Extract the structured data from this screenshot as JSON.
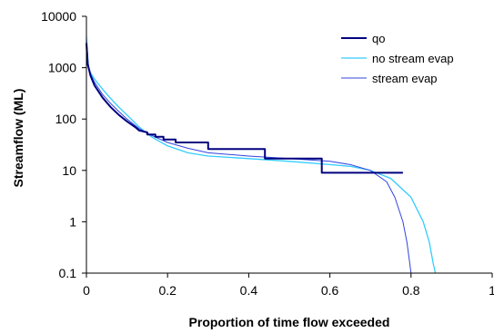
{
  "chart_data": {
    "type": "line",
    "xlabel": "Proportion of time flow exceeded",
    "ylabel": "Streamflow (ML)",
    "xlim": [
      0,
      1
    ],
    "ylim": [
      0.1,
      10000
    ],
    "yscale": "log",
    "grid": false,
    "legend_position": "top-right",
    "x_ticks": [
      "0",
      "0.2",
      "0.4",
      "0.6",
      "0.8",
      "1"
    ],
    "y_ticks": [
      "0.1",
      "1",
      "10",
      "100",
      "1000",
      "10000"
    ],
    "series": [
      {
        "name": "qo",
        "color": "#000080",
        "points": [
          [
            0.0,
            3000
          ],
          [
            0.003,
            1200
          ],
          [
            0.01,
            700
          ],
          [
            0.02,
            450
          ],
          [
            0.04,
            260
          ],
          [
            0.06,
            170
          ],
          [
            0.08,
            120
          ],
          [
            0.1,
            90
          ],
          [
            0.12,
            70
          ],
          [
            0.13,
            60
          ],
          [
            0.15,
            55
          ],
          [
            0.15,
            50
          ],
          [
            0.17,
            50
          ],
          [
            0.17,
            45
          ],
          [
            0.19,
            45
          ],
          [
            0.19,
            40
          ],
          [
            0.22,
            40
          ],
          [
            0.22,
            35
          ],
          [
            0.3,
            35
          ],
          [
            0.3,
            26
          ],
          [
            0.44,
            26
          ],
          [
            0.44,
            17
          ],
          [
            0.58,
            17
          ],
          [
            0.58,
            9
          ],
          [
            0.78,
            9
          ]
        ]
      },
      {
        "name": "no stream evap",
        "color": "#33CCFF",
        "points": [
          [
            0.0,
            4000
          ],
          [
            0.005,
            1000
          ],
          [
            0.01,
            800
          ],
          [
            0.02,
            600
          ],
          [
            0.04,
            380
          ],
          [
            0.06,
            250
          ],
          [
            0.08,
            170
          ],
          [
            0.1,
            120
          ],
          [
            0.13,
            70
          ],
          [
            0.16,
            45
          ],
          [
            0.2,
            30
          ],
          [
            0.25,
            22
          ],
          [
            0.3,
            19
          ],
          [
            0.4,
            17
          ],
          [
            0.5,
            15
          ],
          [
            0.6,
            13
          ],
          [
            0.65,
            12
          ],
          [
            0.7,
            10
          ],
          [
            0.75,
            7
          ],
          [
            0.8,
            3
          ],
          [
            0.83,
            1
          ],
          [
            0.845,
            0.4
          ],
          [
            0.855,
            0.15
          ],
          [
            0.86,
            0.1
          ]
        ]
      },
      {
        "name": "stream evap",
        "color": "#3344DD",
        "points": [
          [
            0.0,
            3500
          ],
          [
            0.005,
            1100
          ],
          [
            0.01,
            750
          ],
          [
            0.02,
            520
          ],
          [
            0.04,
            300
          ],
          [
            0.06,
            200
          ],
          [
            0.08,
            140
          ],
          [
            0.1,
            100
          ],
          [
            0.13,
            65
          ],
          [
            0.16,
            48
          ],
          [
            0.2,
            35
          ],
          [
            0.25,
            27
          ],
          [
            0.3,
            22
          ],
          [
            0.4,
            19
          ],
          [
            0.5,
            17
          ],
          [
            0.6,
            15
          ],
          [
            0.65,
            13
          ],
          [
            0.7,
            10
          ],
          [
            0.74,
            6
          ],
          [
            0.76,
            3
          ],
          [
            0.78,
            1
          ],
          [
            0.79,
            0.4
          ],
          [
            0.795,
            0.2
          ],
          [
            0.8,
            0.1
          ]
        ]
      }
    ]
  }
}
